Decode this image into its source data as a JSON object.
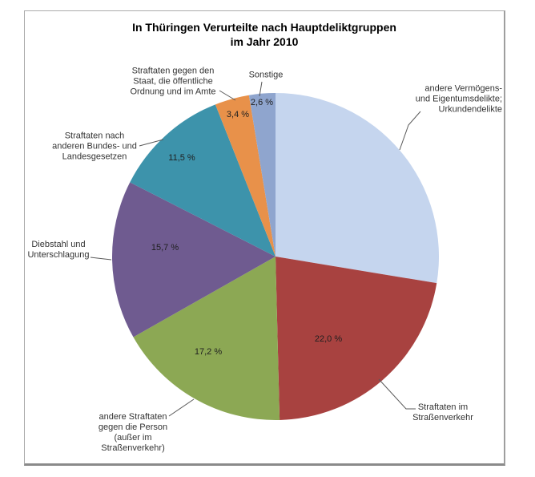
{
  "title": "In Thüringen Verurteilte nach Hauptdeliktgruppen\nim Jahr 2010",
  "chart_data": {
    "type": "pie",
    "title": "In Thüringen Verurteilte nach Hauptdeliktgruppen im Jahr 2010",
    "unit": "%",
    "direction": "clockwise",
    "start_angle_deg": 0,
    "legend": "none",
    "data_labels": "percent values inside slices, category names outside with leader lines",
    "slices": [
      {
        "label": "andere Vermögens- und Eigentumsdelikte; Urkundendelikte",
        "label_display": "andere Vermögens-\nund Eigentumsdelikte;\nUrkundendelikte",
        "value": 27.6,
        "percent_label": null,
        "color": "#C5D5EE"
      },
      {
        "label": "Straftaten im Straßenverkehr",
        "label_display": "Straftaten im\nStraßenverkehr",
        "value": 22.0,
        "percent_label": "22,0 %",
        "color": "#A84240"
      },
      {
        "label": "andere Straftaten gegen die Person (außer im Straßenverkehr)",
        "label_display": "andere Straftaten\ngegen die Person\n(außer im\nStraßenverkehr)",
        "value": 17.2,
        "percent_label": "17,2 %",
        "color": "#8CA854"
      },
      {
        "label": "Diebstahl und Unterschlagung",
        "label_display": "Diebstahl und\nUnterschlagung",
        "value": 15.7,
        "percent_label": "15,7 %",
        "color": "#6F5B90"
      },
      {
        "label": "Straftaten nach anderen Bundes- und Landesgesetzen",
        "label_display": "Straftaten nach\nanderen Bundes- und\nLandesgesetzen",
        "value": 11.5,
        "percent_label": "11,5 %",
        "color": "#3D93AB"
      },
      {
        "label": "Straftaten gegen den Staat, die öffentliche Ordnung und im Amte",
        "label_display": "Straftaten gegen den\nStaat, die öffentliche\nOrdnung und im Amte",
        "value": 3.4,
        "percent_label": "3,4 %",
        "color": "#E8914A"
      },
      {
        "label": "Sonstige",
        "label_display": "Sonstige",
        "value": 2.6,
        "percent_label": "2,6 %",
        "color": "#8FA5CE"
      }
    ]
  }
}
